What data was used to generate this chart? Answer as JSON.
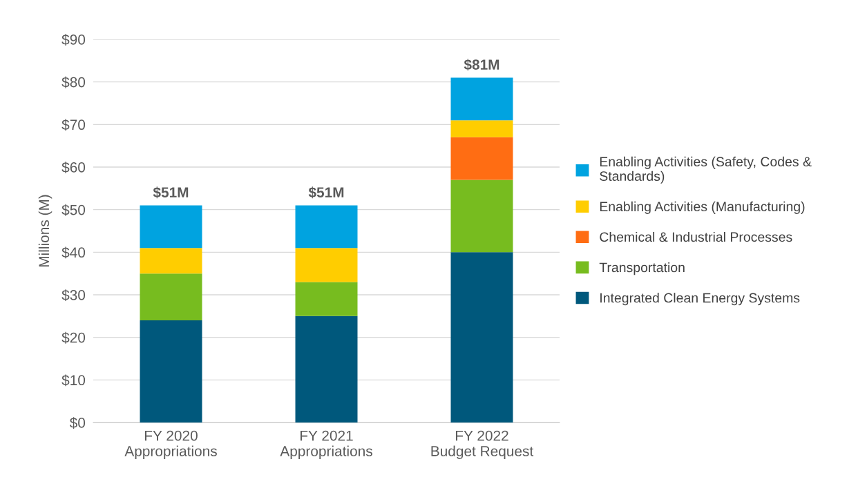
{
  "chart_data": {
    "type": "bar",
    "stacked": true,
    "ylabel": "Millions (M)",
    "categories": [
      "FY 2020\nAppropriations",
      "FY 2021\nAppropriations",
      "FY 2022\nBudget Request"
    ],
    "series": [
      {
        "name": "Integrated Clean Energy Systems",
        "color": "#00587c",
        "values": [
          24,
          25,
          40
        ]
      },
      {
        "name": "Transportation",
        "color": "#77bc1f",
        "values": [
          11,
          8,
          17
        ]
      },
      {
        "name": "Chemical & Industrial Processes",
        "color": "#ff6d13",
        "values": [
          null,
          null,
          10
        ]
      },
      {
        "name": "Enabling Activities (Manufacturing)",
        "color": "#ffcd00",
        "values": [
          6,
          8,
          4
        ]
      },
      {
        "name": "Enabling Activities (Safety, Codes & Standards)",
        "color": "#00a3e0",
        "values": [
          10,
          10,
          10
        ]
      }
    ],
    "totals": [
      "$51M",
      "$51M",
      "$81M"
    ],
    "ylim": [
      0,
      90
    ],
    "yticks": [
      {
        "value": 0,
        "label": "$0"
      },
      {
        "value": 10,
        "label": "$10"
      },
      {
        "value": 20,
        "label": "$20"
      },
      {
        "value": 30,
        "label": "$30"
      },
      {
        "value": 40,
        "label": "$40"
      },
      {
        "value": 50,
        "label": "$50"
      },
      {
        "value": 60,
        "label": "$60"
      },
      {
        "value": 70,
        "label": "$70"
      },
      {
        "value": 80,
        "label": "$80"
      },
      {
        "value": 90,
        "label": "$90"
      }
    ],
    "grid": "y",
    "legend": "right"
  }
}
